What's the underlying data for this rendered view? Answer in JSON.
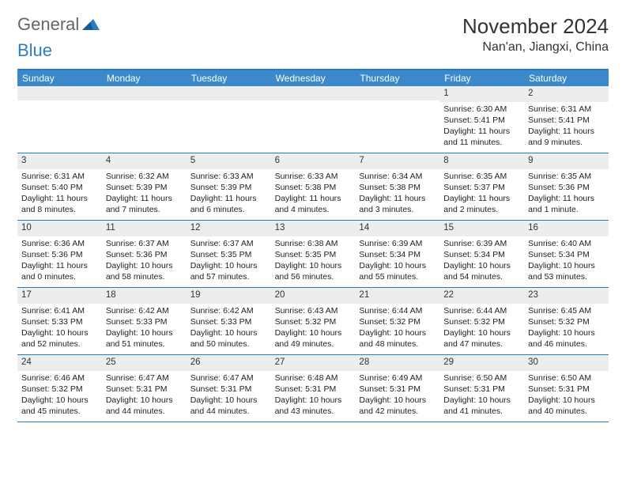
{
  "logo": {
    "general": "General",
    "blue": "Blue"
  },
  "title": "November 2024",
  "location": "Nan'an, Jiangxi, China",
  "colors": {
    "header_bar": "#3b89ca",
    "border": "#2a7dc4",
    "daynum_bg": "#eceded",
    "text": "#222222"
  },
  "days_of_week": [
    "Sunday",
    "Monday",
    "Tuesday",
    "Wednesday",
    "Thursday",
    "Friday",
    "Saturday"
  ],
  "weeks": [
    [
      null,
      null,
      null,
      null,
      null,
      {
        "n": "1",
        "sr": "Sunrise: 6:30 AM",
        "ss": "Sunset: 5:41 PM",
        "dl": "Daylight: 11 hours and 11 minutes."
      },
      {
        "n": "2",
        "sr": "Sunrise: 6:31 AM",
        "ss": "Sunset: 5:41 PM",
        "dl": "Daylight: 11 hours and 9 minutes."
      }
    ],
    [
      {
        "n": "3",
        "sr": "Sunrise: 6:31 AM",
        "ss": "Sunset: 5:40 PM",
        "dl": "Daylight: 11 hours and 8 minutes."
      },
      {
        "n": "4",
        "sr": "Sunrise: 6:32 AM",
        "ss": "Sunset: 5:39 PM",
        "dl": "Daylight: 11 hours and 7 minutes."
      },
      {
        "n": "5",
        "sr": "Sunrise: 6:33 AM",
        "ss": "Sunset: 5:39 PM",
        "dl": "Daylight: 11 hours and 6 minutes."
      },
      {
        "n": "6",
        "sr": "Sunrise: 6:33 AM",
        "ss": "Sunset: 5:38 PM",
        "dl": "Daylight: 11 hours and 4 minutes."
      },
      {
        "n": "7",
        "sr": "Sunrise: 6:34 AM",
        "ss": "Sunset: 5:38 PM",
        "dl": "Daylight: 11 hours and 3 minutes."
      },
      {
        "n": "8",
        "sr": "Sunrise: 6:35 AM",
        "ss": "Sunset: 5:37 PM",
        "dl": "Daylight: 11 hours and 2 minutes."
      },
      {
        "n": "9",
        "sr": "Sunrise: 6:35 AM",
        "ss": "Sunset: 5:36 PM",
        "dl": "Daylight: 11 hours and 1 minute."
      }
    ],
    [
      {
        "n": "10",
        "sr": "Sunrise: 6:36 AM",
        "ss": "Sunset: 5:36 PM",
        "dl": "Daylight: 11 hours and 0 minutes."
      },
      {
        "n": "11",
        "sr": "Sunrise: 6:37 AM",
        "ss": "Sunset: 5:36 PM",
        "dl": "Daylight: 10 hours and 58 minutes."
      },
      {
        "n": "12",
        "sr": "Sunrise: 6:37 AM",
        "ss": "Sunset: 5:35 PM",
        "dl": "Daylight: 10 hours and 57 minutes."
      },
      {
        "n": "13",
        "sr": "Sunrise: 6:38 AM",
        "ss": "Sunset: 5:35 PM",
        "dl": "Daylight: 10 hours and 56 minutes."
      },
      {
        "n": "14",
        "sr": "Sunrise: 6:39 AM",
        "ss": "Sunset: 5:34 PM",
        "dl": "Daylight: 10 hours and 55 minutes."
      },
      {
        "n": "15",
        "sr": "Sunrise: 6:39 AM",
        "ss": "Sunset: 5:34 PM",
        "dl": "Daylight: 10 hours and 54 minutes."
      },
      {
        "n": "16",
        "sr": "Sunrise: 6:40 AM",
        "ss": "Sunset: 5:34 PM",
        "dl": "Daylight: 10 hours and 53 minutes."
      }
    ],
    [
      {
        "n": "17",
        "sr": "Sunrise: 6:41 AM",
        "ss": "Sunset: 5:33 PM",
        "dl": "Daylight: 10 hours and 52 minutes."
      },
      {
        "n": "18",
        "sr": "Sunrise: 6:42 AM",
        "ss": "Sunset: 5:33 PM",
        "dl": "Daylight: 10 hours and 51 minutes."
      },
      {
        "n": "19",
        "sr": "Sunrise: 6:42 AM",
        "ss": "Sunset: 5:33 PM",
        "dl": "Daylight: 10 hours and 50 minutes."
      },
      {
        "n": "20",
        "sr": "Sunrise: 6:43 AM",
        "ss": "Sunset: 5:32 PM",
        "dl": "Daylight: 10 hours and 49 minutes."
      },
      {
        "n": "21",
        "sr": "Sunrise: 6:44 AM",
        "ss": "Sunset: 5:32 PM",
        "dl": "Daylight: 10 hours and 48 minutes."
      },
      {
        "n": "22",
        "sr": "Sunrise: 6:44 AM",
        "ss": "Sunset: 5:32 PM",
        "dl": "Daylight: 10 hours and 47 minutes."
      },
      {
        "n": "23",
        "sr": "Sunrise: 6:45 AM",
        "ss": "Sunset: 5:32 PM",
        "dl": "Daylight: 10 hours and 46 minutes."
      }
    ],
    [
      {
        "n": "24",
        "sr": "Sunrise: 6:46 AM",
        "ss": "Sunset: 5:32 PM",
        "dl": "Daylight: 10 hours and 45 minutes."
      },
      {
        "n": "25",
        "sr": "Sunrise: 6:47 AM",
        "ss": "Sunset: 5:31 PM",
        "dl": "Daylight: 10 hours and 44 minutes."
      },
      {
        "n": "26",
        "sr": "Sunrise: 6:47 AM",
        "ss": "Sunset: 5:31 PM",
        "dl": "Daylight: 10 hours and 44 minutes."
      },
      {
        "n": "27",
        "sr": "Sunrise: 6:48 AM",
        "ss": "Sunset: 5:31 PM",
        "dl": "Daylight: 10 hours and 43 minutes."
      },
      {
        "n": "28",
        "sr": "Sunrise: 6:49 AM",
        "ss": "Sunset: 5:31 PM",
        "dl": "Daylight: 10 hours and 42 minutes."
      },
      {
        "n": "29",
        "sr": "Sunrise: 6:50 AM",
        "ss": "Sunset: 5:31 PM",
        "dl": "Daylight: 10 hours and 41 minutes."
      },
      {
        "n": "30",
        "sr": "Sunrise: 6:50 AM",
        "ss": "Sunset: 5:31 PM",
        "dl": "Daylight: 10 hours and 40 minutes."
      }
    ]
  ]
}
